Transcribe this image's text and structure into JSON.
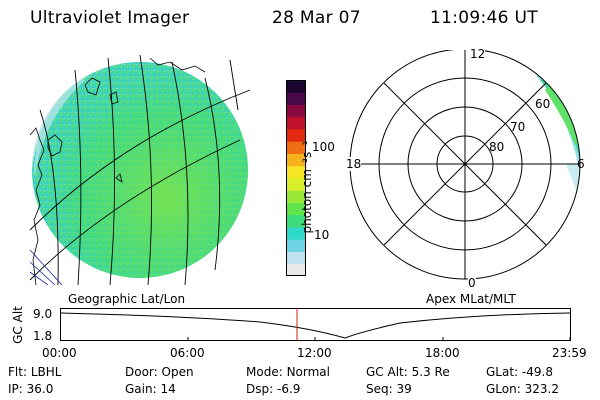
{
  "header": {
    "instrument": "Ultraviolet Imager",
    "date": "28 Mar 07",
    "time": "11:09:46 UT"
  },
  "colorbar": {
    "label": "photon cm⁻²s⁻¹",
    "ticks": [
      "100",
      "10"
    ],
    "colors": [
      "#e8e8e8",
      "#bfe3f0",
      "#6fd4e6",
      "#2fd9c9",
      "#3ddc7a",
      "#5fe24a",
      "#9be83a",
      "#d8ee2a",
      "#f6e524",
      "#f6b11c",
      "#ee6f14",
      "#e12a10",
      "#c0102a",
      "#8a0a40",
      "#4a0848",
      "#1a0530"
    ]
  },
  "polar": {
    "clock_labels": [
      "12",
      "18",
      "6",
      "0"
    ],
    "lat_labels": [
      "60",
      "70",
      "80"
    ]
  },
  "projection_labels": {
    "left": "Geographic Lat/Lon",
    "right": "Apex MLat/MLT"
  },
  "alt_plot": {
    "axis_label": "GC Alt",
    "y_ticks": [
      "9.0",
      "1.8"
    ],
    "x_ticks": [
      "00:00",
      "06:00",
      "12:00",
      "18:00",
      "23:59"
    ]
  },
  "status": {
    "row1": [
      {
        "label": "Flt:",
        "value": "LBHL"
      },
      {
        "label": "Door:",
        "value": "Open"
      },
      {
        "label": "Mode:",
        "value": "Normal"
      },
      {
        "label": "GC Alt:",
        "value": "5.3 Re"
      },
      {
        "label": "GLat:",
        "value": "-49.8"
      }
    ],
    "row2": [
      {
        "label": "IP:",
        "value": "36.0"
      },
      {
        "label": "Gain:",
        "value": "14"
      },
      {
        "label": "Dsp:",
        "value": "-6.9"
      },
      {
        "label": "Seq:",
        "value": "39"
      },
      {
        "label": "GLon:",
        "value": "323.2"
      }
    ]
  }
}
